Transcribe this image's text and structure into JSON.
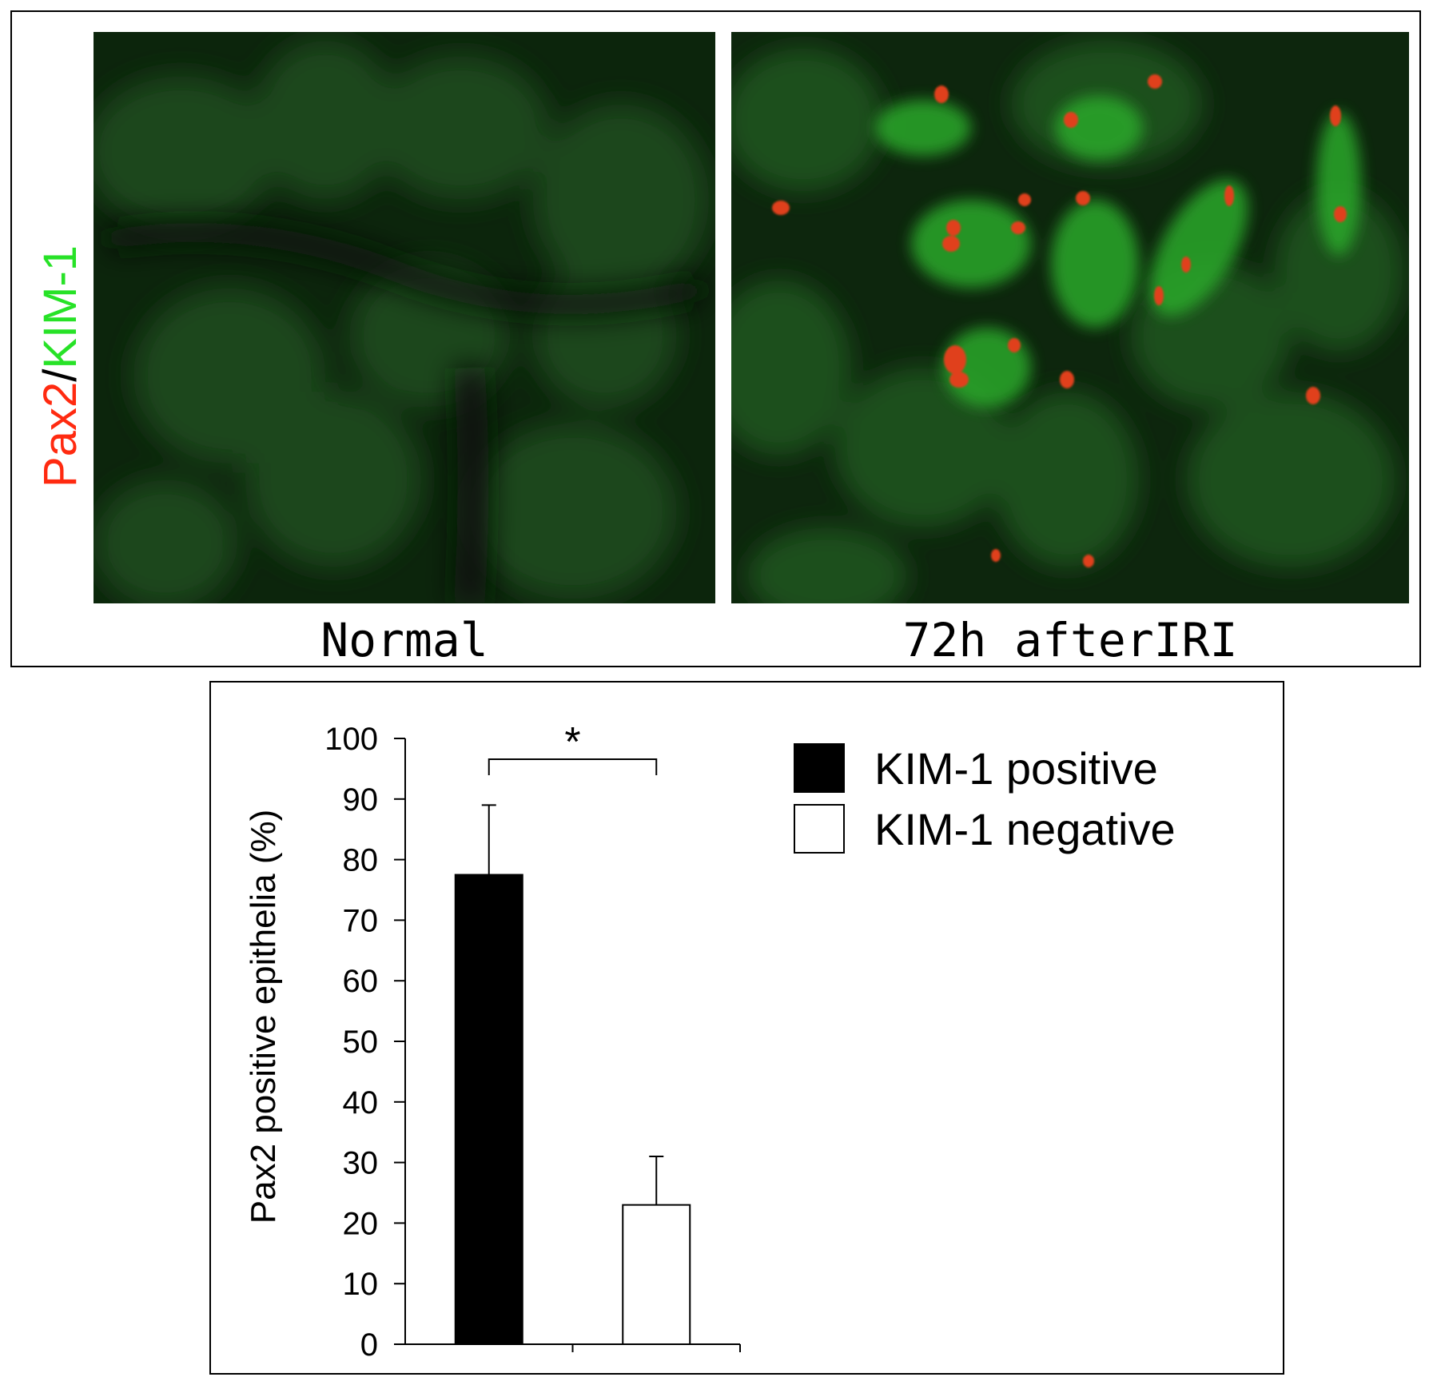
{
  "figure": {
    "stain_label": {
      "part1": "Pax2",
      "separator": "/",
      "part2": "KIM-1"
    },
    "stain_colors": {
      "pax2": "#ff2a10",
      "kim1": "#27e227",
      "separator": "#000000"
    },
    "panels": [
      {
        "caption": "Normal"
      },
      {
        "caption": "72h afterIRI"
      }
    ]
  },
  "chart_data": {
    "type": "bar",
    "categories": [
      "KIM-1 positive",
      "KIM-1 negative"
    ],
    "values": [
      77.5,
      23
    ],
    "error_upper": [
      89,
      31
    ],
    "colors": [
      "#000000",
      "#ffffff"
    ],
    "ylabel": "Pax2 positive epithelia (%)",
    "xlabel": "",
    "ylim": [
      0,
      100
    ],
    "yticks": [
      0,
      10,
      20,
      30,
      40,
      50,
      60,
      70,
      80,
      90,
      100
    ],
    "significance": {
      "between": [
        0,
        1
      ],
      "label": "*"
    },
    "legend": {
      "position": "top-right",
      "entries": [
        {
          "label": "KIM-1 positive",
          "color": "#000000"
        },
        {
          "label": "KIM-1 negative",
          "color": "#ffffff"
        }
      ]
    }
  }
}
